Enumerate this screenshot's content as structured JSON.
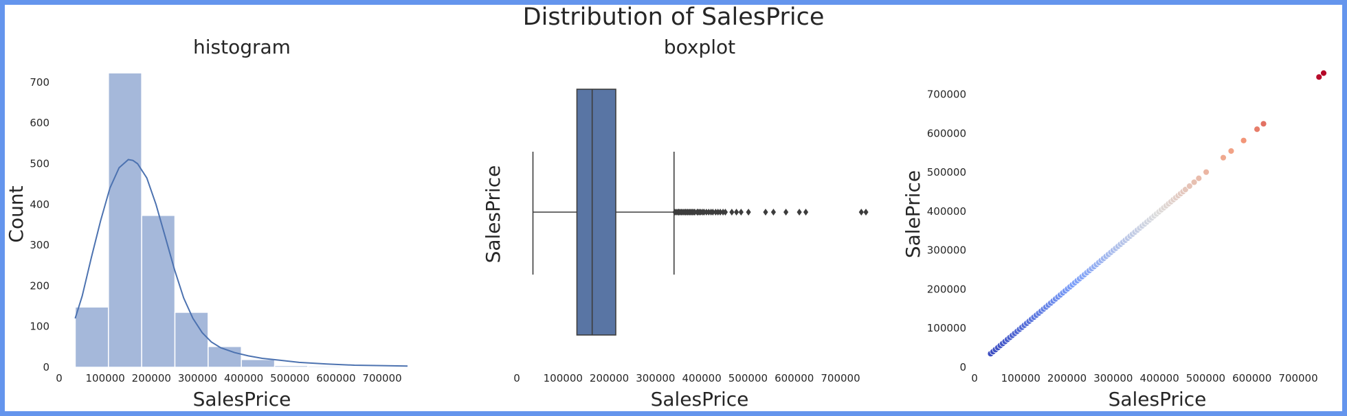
{
  "figure": {
    "title": "Distribution of SalesPrice",
    "border_color": "#6495ED"
  },
  "chart_data": [
    {
      "type": "bar",
      "subtype": "histogram",
      "title": "histogram",
      "xlabel": "SalesPrice",
      "ylabel": "Count",
      "xlim": [
        0,
        755000
      ],
      "ylim": [
        0,
        720
      ],
      "xticks": [
        0,
        100000,
        200000,
        300000,
        400000,
        500000,
        600000,
        700000
      ],
      "yticks": [
        0,
        100,
        200,
        300,
        400,
        500,
        600,
        700
      ],
      "bins": [
        {
          "start": 34900,
          "end": 106910,
          "count": 148
        },
        {
          "start": 106910,
          "end": 178920,
          "count": 723
        },
        {
          "start": 178920,
          "end": 250930,
          "count": 373
        },
        {
          "start": 250930,
          "end": 322940,
          "count": 135
        },
        {
          "start": 322940,
          "end": 394950,
          "count": 51
        },
        {
          "start": 394950,
          "end": 466960,
          "count": 19
        },
        {
          "start": 466960,
          "end": 538970,
          "count": 4
        },
        {
          "start": 538970,
          "end": 610980,
          "count": 3
        },
        {
          "start": 610980,
          "end": 682990,
          "count": 2
        },
        {
          "start": 682990,
          "end": 755000,
          "count": 2
        }
      ],
      "kde": [
        [
          34900,
          120
        ],
        [
          50000,
          175
        ],
        [
          70000,
          270
        ],
        [
          90000,
          360
        ],
        [
          110000,
          440
        ],
        [
          130000,
          490
        ],
        [
          150000,
          510
        ],
        [
          160000,
          508
        ],
        [
          170000,
          500
        ],
        [
          190000,
          465
        ],
        [
          210000,
          400
        ],
        [
          230000,
          320
        ],
        [
          250000,
          240
        ],
        [
          270000,
          170
        ],
        [
          290000,
          120
        ],
        [
          310000,
          85
        ],
        [
          330000,
          62
        ],
        [
          350000,
          48
        ],
        [
          380000,
          36
        ],
        [
          410000,
          28
        ],
        [
          440000,
          22
        ],
        [
          480000,
          17
        ],
        [
          520000,
          12
        ],
        [
          580000,
          8
        ],
        [
          640000,
          5
        ],
        [
          700000,
          4
        ],
        [
          755000,
          3
        ]
      ],
      "bar_color": "#a5b8da",
      "line_color": "#4c72b0"
    },
    {
      "type": "box",
      "title": "boxplot",
      "xlabel": "SalesPrice",
      "ylabel": "SalesPrice",
      "xlim": [
        0,
        755000
      ],
      "xticks": [
        0,
        100000,
        200000,
        300000,
        400000,
        500000,
        600000,
        700000
      ],
      "whisker_low": 34900,
      "q1": 129975,
      "median": 163000,
      "q3": 214000,
      "whisker_high": 340000,
      "outliers": [
        342000,
        345000,
        348000,
        350000,
        352000,
        355000,
        357000,
        360000,
        363000,
        365000,
        368000,
        370000,
        373000,
        375000,
        378000,
        380000,
        383000,
        385000,
        390000,
        392000,
        395000,
        398000,
        402000,
        405000,
        410000,
        415000,
        420000,
        424000,
        430000,
        435000,
        440000,
        446000,
        451000,
        465000,
        475000,
        485000,
        501000,
        538000,
        555000,
        582000,
        611000,
        625000,
        745000,
        755000
      ],
      "box_color": "#5975a4",
      "line_color": "#3d3d3d"
    },
    {
      "type": "scatter",
      "title": "",
      "xlabel": "SalesPrice",
      "ylabel": "SalePrice",
      "xlim": [
        0,
        755000
      ],
      "ylim": [
        0,
        770000
      ],
      "xticks": [
        0,
        100000,
        200000,
        300000,
        400000,
        500000,
        600000,
        700000
      ],
      "yticks": [
        0,
        100000,
        200000,
        300000,
        400000,
        500000,
        600000,
        700000
      ],
      "colormap": "coolwarm",
      "x_range": [
        34900,
        755000
      ],
      "dense_range": [
        34900,
        460000
      ],
      "sparse_points": [
        465000,
        475000,
        485000,
        501000,
        538000,
        555000,
        582000,
        611000,
        625000,
        745000,
        755000
      ]
    }
  ]
}
